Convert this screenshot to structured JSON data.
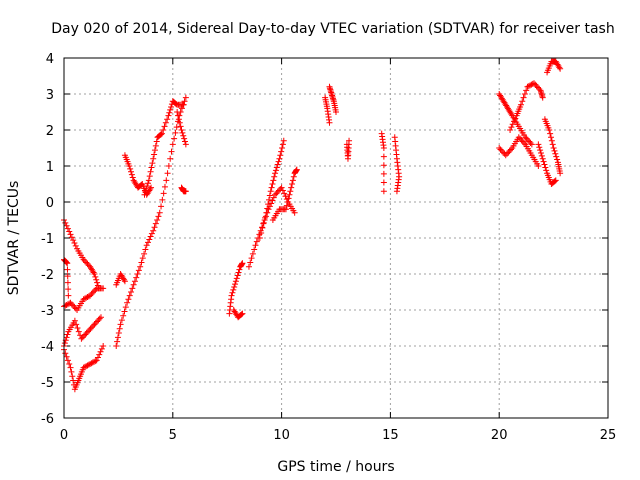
{
  "chart_data": {
    "type": "scatter",
    "title": "Day 020 of 2014, Sidereal Day-to-day VTEC variation (SDTVAR) for receiver tash",
    "xlabel": "GPS time / hours",
    "ylabel": "SDTVAR / TECUs",
    "xlim": [
      0,
      25
    ],
    "ylim": [
      -6,
      4
    ],
    "xticks": [
      0,
      5,
      10,
      15,
      20,
      25
    ],
    "yticks": [
      -6,
      -5,
      -4,
      -3,
      -2,
      -1,
      0,
      1,
      2,
      3,
      4
    ],
    "grid": true,
    "legend": "none",
    "marker": "plus",
    "color": "#ff0000",
    "segments": [
      {
        "points": [
          [
            0.0,
            -0.5
          ],
          [
            0.3,
            -0.9
          ],
          [
            0.6,
            -1.3
          ],
          [
            0.9,
            -1.6
          ],
          [
            1.2,
            -1.8
          ],
          [
            1.4,
            -2.0
          ],
          [
            1.6,
            -2.4
          ]
        ]
      },
      {
        "points": [
          [
            0.0,
            -1.6
          ],
          [
            0.15,
            -1.7
          ],
          [
            0.2,
            -2.6
          ]
        ]
      },
      {
        "points": [
          [
            0.0,
            -2.9
          ],
          [
            0.3,
            -2.8
          ],
          [
            0.6,
            -3.0
          ],
          [
            0.9,
            -2.7
          ],
          [
            1.2,
            -2.6
          ],
          [
            1.5,
            -2.4
          ],
          [
            1.8,
            -2.4
          ]
        ]
      },
      {
        "points": [
          [
            0.0,
            -4.0
          ],
          [
            0.2,
            -3.6
          ],
          [
            0.5,
            -3.3
          ],
          [
            0.8,
            -3.8
          ],
          [
            1.1,
            -3.6
          ],
          [
            1.4,
            -3.4
          ],
          [
            1.7,
            -3.2
          ]
        ]
      },
      {
        "points": [
          [
            0.0,
            -4.1
          ],
          [
            0.3,
            -4.6
          ],
          [
            0.5,
            -5.2
          ],
          [
            0.7,
            -4.9
          ],
          [
            0.9,
            -4.6
          ],
          [
            1.2,
            -4.5
          ],
          [
            1.5,
            -4.4
          ],
          [
            1.8,
            -4.0
          ]
        ]
      },
      {
        "points": [
          [
            2.4,
            -4.0
          ],
          [
            2.6,
            -3.4
          ],
          [
            2.9,
            -2.8
          ],
          [
            3.2,
            -2.3
          ],
          [
            3.5,
            -1.8
          ],
          [
            3.8,
            -1.2
          ],
          [
            4.1,
            -0.8
          ],
          [
            4.4,
            -0.3
          ],
          [
            4.7,
            0.6
          ],
          [
            5.0,
            1.6
          ],
          [
            5.3,
            2.4
          ],
          [
            5.6,
            2.9
          ]
        ]
      },
      {
        "points": [
          [
            2.4,
            -2.3
          ],
          [
            2.6,
            -2.0
          ],
          [
            2.8,
            -2.2
          ]
        ]
      },
      {
        "points": [
          [
            2.8,
            1.3
          ],
          [
            3.0,
            1.0
          ],
          [
            3.2,
            0.6
          ],
          [
            3.4,
            0.4
          ],
          [
            3.6,
            0.5
          ],
          [
            3.8,
            0.2
          ],
          [
            4.0,
            0.4
          ]
        ]
      },
      {
        "points": [
          [
            3.7,
            0.2
          ],
          [
            3.9,
            0.6
          ],
          [
            4.1,
            1.2
          ],
          [
            4.3,
            1.8
          ],
          [
            4.5,
            1.9
          ],
          [
            4.8,
            2.4
          ],
          [
            5.0,
            2.8
          ],
          [
            5.2,
            2.7
          ],
          [
            5.5,
            2.7
          ]
        ]
      },
      {
        "points": [
          [
            5.2,
            2.5
          ],
          [
            5.4,
            2.0
          ],
          [
            5.6,
            1.6
          ]
        ]
      },
      {
        "points": [
          [
            5.4,
            0.4
          ],
          [
            5.5,
            0.3
          ],
          [
            5.6,
            0.3
          ]
        ]
      },
      {
        "points": [
          [
            7.6,
            -3.1
          ],
          [
            7.7,
            -2.6
          ],
          [
            7.9,
            -2.2
          ],
          [
            8.1,
            -1.8
          ],
          [
            8.2,
            -1.7
          ]
        ]
      },
      {
        "points": [
          [
            7.8,
            -3.0
          ],
          [
            8.0,
            -3.2
          ],
          [
            8.2,
            -3.1
          ]
        ]
      },
      {
        "points": [
          [
            8.5,
            -1.8
          ],
          [
            8.8,
            -1.2
          ],
          [
            9.1,
            -0.7
          ],
          [
            9.4,
            -0.2
          ],
          [
            9.7,
            0.2
          ],
          [
            10.0,
            0.4
          ],
          [
            10.3,
            0.0
          ],
          [
            10.6,
            -0.3
          ]
        ]
      },
      {
        "points": [
          [
            9.0,
            -1.0
          ],
          [
            9.3,
            -0.3
          ],
          [
            9.5,
            0.3
          ],
          [
            9.7,
            0.8
          ],
          [
            9.9,
            1.2
          ],
          [
            10.1,
            1.7
          ]
        ]
      },
      {
        "points": [
          [
            9.6,
            -0.5
          ],
          [
            9.9,
            -0.2
          ],
          [
            10.2,
            -0.2
          ],
          [
            10.4,
            0.3
          ],
          [
            10.6,
            0.8
          ],
          [
            10.7,
            0.9
          ]
        ]
      },
      {
        "points": [
          [
            12.0,
            2.9
          ],
          [
            12.1,
            2.6
          ],
          [
            12.2,
            2.2
          ]
        ]
      },
      {
        "points": [
          [
            12.2,
            3.2
          ],
          [
            12.3,
            3.0
          ],
          [
            12.4,
            2.8
          ],
          [
            12.5,
            2.5
          ]
        ]
      },
      {
        "points": [
          [
            13.0,
            1.6
          ],
          [
            13.05,
            1.2
          ],
          [
            13.1,
            1.7
          ]
        ]
      },
      {
        "points": [
          [
            14.6,
            1.9
          ],
          [
            14.7,
            1.5
          ],
          [
            14.7,
            0.3
          ]
        ]
      },
      {
        "points": [
          [
            15.2,
            1.8
          ],
          [
            15.3,
            1.2
          ],
          [
            15.4,
            0.7
          ],
          [
            15.3,
            0.3
          ]
        ]
      },
      {
        "points": [
          [
            20.0,
            3.0
          ],
          [
            20.2,
            2.8
          ],
          [
            20.4,
            2.6
          ],
          [
            20.6,
            2.4
          ],
          [
            20.9,
            2.1
          ],
          [
            21.2,
            1.8
          ],
          [
            21.5,
            1.6
          ]
        ]
      },
      {
        "points": [
          [
            20.0,
            1.5
          ],
          [
            20.3,
            1.3
          ],
          [
            20.6,
            1.5
          ],
          [
            20.9,
            1.8
          ],
          [
            21.2,
            1.6
          ],
          [
            21.5,
            1.3
          ],
          [
            21.8,
            1.0
          ]
        ]
      },
      {
        "points": [
          [
            20.5,
            2.0
          ],
          [
            20.8,
            2.4
          ],
          [
            21.0,
            2.7
          ],
          [
            21.3,
            3.2
          ],
          [
            21.6,
            3.3
          ],
          [
            21.9,
            3.1
          ],
          [
            22.0,
            2.9
          ]
        ]
      },
      {
        "points": [
          [
            21.8,
            1.6
          ],
          [
            22.0,
            1.2
          ],
          [
            22.2,
            0.8
          ],
          [
            22.4,
            0.5
          ],
          [
            22.6,
            0.6
          ]
        ]
      },
      {
        "points": [
          [
            22.1,
            2.3
          ],
          [
            22.3,
            2.0
          ],
          [
            22.5,
            1.5
          ],
          [
            22.7,
            1.1
          ],
          [
            22.8,
            0.8
          ]
        ]
      },
      {
        "points": [
          [
            22.2,
            3.6
          ],
          [
            22.4,
            3.9
          ],
          [
            22.6,
            3.9
          ],
          [
            22.8,
            3.7
          ]
        ]
      }
    ]
  }
}
